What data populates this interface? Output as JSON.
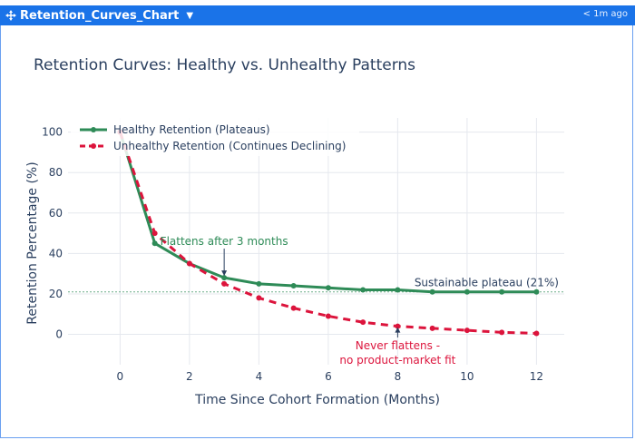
{
  "window": {
    "title": "Retention_Curves_Chart",
    "timestamp": "< 1m ago",
    "accent": "#1a73e8"
  },
  "chart_data": {
    "type": "line",
    "title": "Retention Curves: Healthy vs. Unhealthy Patterns",
    "xlabel": "Time Since Cohort Formation (Months)",
    "ylabel": "Retention Percentage (%)",
    "xlim": [
      -1.5,
      12.8
    ],
    "ylim": [
      -15,
      107
    ],
    "x_ticks": [
      0,
      2,
      4,
      6,
      8,
      10,
      12
    ],
    "y_ticks": [
      0,
      20,
      40,
      60,
      80,
      100
    ],
    "grid": true,
    "legend_position": "top-left",
    "x": [
      0,
      1,
      2,
      3,
      4,
      5,
      6,
      7,
      8,
      9,
      10,
      11,
      12
    ],
    "series": [
      {
        "name": "Healthy Retention (Plateaus)",
        "color": "#2e8b57",
        "style": "solid",
        "values": [
          100,
          45,
          35,
          28,
          25,
          24,
          23,
          22,
          22,
          21,
          21,
          21,
          21
        ]
      },
      {
        "name": "Unhealthy Retention (Continues Declining)",
        "color": "#dc143c",
        "style": "dashed",
        "values": [
          100,
          50,
          35,
          25,
          18,
          13,
          9,
          6,
          4,
          3,
          2,
          1,
          0.5
        ]
      }
    ],
    "reference_line": {
      "y": 21,
      "color": "#2e8b57",
      "label": "Sustainable plateau (21%)"
    },
    "annotations": [
      {
        "text": "Flattens after 3 months",
        "x": 3,
        "y": 28,
        "color": "#2e8b57"
      },
      {
        "line1": "Never flattens -",
        "line2": "no product-market fit",
        "x": 8,
        "y": 4,
        "color": "#dc143c"
      }
    ]
  }
}
